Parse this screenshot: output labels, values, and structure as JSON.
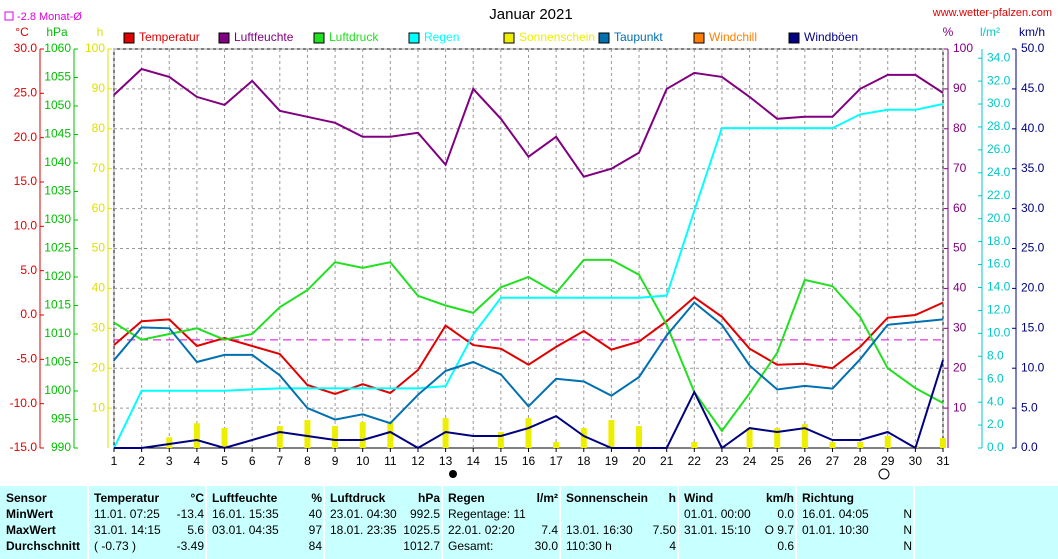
{
  "chart_data": {
    "type": "line",
    "title": "Januar 2021",
    "source": "www.wetter-pfalzen.com",
    "monthly_avg": {
      "value": -2.8,
      "label": "-2.8 Monat-Ø"
    },
    "x": [
      1,
      2,
      3,
      4,
      5,
      6,
      7,
      8,
      9,
      10,
      11,
      12,
      13,
      14,
      15,
      16,
      17,
      18,
      19,
      20,
      21,
      22,
      23,
      24,
      25,
      26,
      27,
      28,
      29,
      30,
      31
    ],
    "xlim": [
      1,
      31
    ],
    "xticks": [
      1,
      2,
      3,
      4,
      5,
      6,
      7,
      8,
      9,
      10,
      11,
      12,
      13,
      14,
      15,
      16,
      17,
      18,
      19,
      20,
      21,
      22,
      23,
      24,
      25,
      26,
      27,
      28,
      29,
      30,
      31
    ],
    "grid": true,
    "axes": {
      "temp": {
        "label": "°C",
        "color": "#e00000",
        "side": "left",
        "lim": [
          -15,
          30
        ],
        "ticks": [
          {
            "value": 30,
            "label": "30.0"
          },
          {
            "value": 25,
            "label": "25.0"
          },
          {
            "value": 20,
            "label": "20.0"
          },
          {
            "value": 15,
            "label": "15.0"
          },
          {
            "value": 10,
            "label": "10.0"
          },
          {
            "value": 5,
            "label": "5.0"
          },
          {
            "value": 0,
            "label": "0.0"
          },
          {
            "value": -5,
            "label": "-5.0"
          },
          {
            "value": -10,
            "label": "-10.0"
          },
          {
            "value": -15,
            "label": "-15.0"
          }
        ]
      },
      "press": {
        "label": "hPa",
        "color": "#00c000",
        "side": "left",
        "lim": [
          990,
          1060
        ],
        "ticks": [
          1060,
          1055,
          1050,
          1045,
          1040,
          1035,
          1030,
          1025,
          1020,
          1015,
          1010,
          1005,
          1000,
          995,
          990
        ]
      },
      "sun": {
        "label": "h",
        "color": "#e0e000",
        "side": "left",
        "lim": [
          0,
          100
        ],
        "ticks": [
          100,
          90,
          80,
          70,
          60,
          50,
          40,
          30,
          20,
          10
        ]
      },
      "hum": {
        "label": "%",
        "color": "#800080",
        "side": "right",
        "lim": [
          0,
          100
        ],
        "ticks": [
          100,
          90,
          80,
          70,
          60,
          50,
          40,
          30,
          20,
          10
        ]
      },
      "rain": {
        "label": "l/m²",
        "color": "#00c8c8",
        "side": "right",
        "lim": [
          0,
          34.8
        ],
        "ticks": [
          {
            "value": 34,
            "label": "34.0"
          },
          {
            "value": 32,
            "label": "32.0"
          },
          {
            "value": 30,
            "label": "30.0"
          },
          {
            "value": 28,
            "label": "28.0"
          },
          {
            "value": 26,
            "label": "26.0"
          },
          {
            "value": 24,
            "label": "24.0"
          },
          {
            "value": 22,
            "label": "22.0"
          },
          {
            "value": 20,
            "label": "20.0"
          },
          {
            "value": 18,
            "label": "18.0"
          },
          {
            "value": 16,
            "label": "16.0"
          },
          {
            "value": 14,
            "label": "14.0"
          },
          {
            "value": 12,
            "label": "12.0"
          },
          {
            "value": 10,
            "label": "10.0"
          },
          {
            "value": 8,
            "label": "8.0"
          },
          {
            "value": 6,
            "label": "6.0"
          },
          {
            "value": 4,
            "label": "4.0"
          },
          {
            "value": 2,
            "label": "2.0"
          },
          {
            "value": 0,
            "label": "0.0"
          }
        ]
      },
      "wind": {
        "label": "km/h",
        "color": "#000080",
        "side": "right",
        "lim": [
          0,
          50
        ],
        "ticks": [
          {
            "value": 50,
            "label": "50.0"
          },
          {
            "value": 45,
            "label": "45.0"
          },
          {
            "value": 40,
            "label": "40.0"
          },
          {
            "value": 35,
            "label": "35.0"
          },
          {
            "value": 30,
            "label": "30.0"
          },
          {
            "value": 25,
            "label": "25.0"
          },
          {
            "value": 20,
            "label": "20.0"
          },
          {
            "value": 15,
            "label": "15.0"
          },
          {
            "value": 10,
            "label": "10.0"
          },
          {
            "value": 5,
            "label": "5.0"
          },
          {
            "value": 0,
            "label": "0.0"
          }
        ]
      }
    },
    "series": [
      {
        "name": "Temperatur",
        "color": "#e00000",
        "axis": "temp",
        "values": [
          -3.4,
          -0.7,
          -0.5,
          -3.5,
          -2.6,
          -3.5,
          -4.4,
          -7.9,
          -8.9,
          -7.8,
          -8.8,
          -6.2,
          -1.2,
          -3.4,
          -3.8,
          -5.6,
          -3.6,
          -1.8,
          -3.9,
          -3.0,
          -0.7,
          2.0,
          -0.2,
          -3.8,
          -5.6,
          -5.5,
          -6.0,
          -3.6,
          -0.3,
          0,
          1.4
        ]
      },
      {
        "name": "Luftfeuchte",
        "color": "#800080",
        "axis": "hum",
        "values": [
          88.5,
          95,
          93,
          88,
          86,
          92,
          84.5,
          83,
          81.5,
          78,
          78,
          79,
          71,
          90,
          82.5,
          73,
          78,
          68,
          70,
          74,
          90,
          94,
          93,
          88,
          82.5,
          83,
          83,
          90,
          93.5,
          93.5,
          89
        ]
      },
      {
        "name": "Luftdruck",
        "color": "#20e020",
        "axis": "press",
        "values": [
          1012,
          1009,
          1010,
          1011,
          1009,
          1010,
          1014.7,
          1017.7,
          1022.6,
          1021.6,
          1022.6,
          1016.7,
          1015,
          1013.7,
          1018.2,
          1020,
          1017.2,
          1023,
          1023,
          1020.4,
          1011.6,
          999.8,
          993,
          999.6,
          1006.7,
          1019.5,
          1018.4,
          1013,
          1004,
          1000.5,
          997.9
        ]
      },
      {
        "name": "Regen",
        "color": "#00ffff",
        "axis": "rain",
        "values": [
          0,
          5.0,
          5.0,
          5.0,
          5.0,
          5.1,
          5.2,
          5.2,
          5.2,
          5.2,
          5.2,
          5.2,
          5.4,
          9.9,
          13.1,
          13.1,
          13.1,
          13.1,
          13.1,
          13.1,
          13.3,
          20.7,
          27.9,
          27.9,
          27.9,
          27.9,
          27.9,
          29.1,
          29.5,
          29.5,
          30.0
        ]
      },
      {
        "name": "Sonnenschein",
        "color": "#eeee00",
        "axis": "sun",
        "type": "bar",
        "values": [
          0,
          0,
          2.7,
          6.2,
          5,
          0,
          5.5,
          7,
          5.5,
          6.5,
          6.5,
          0,
          7.5,
          0,
          4,
          7.5,
          1.5,
          5,
          7,
          5.5,
          0,
          1.5,
          0,
          5,
          5,
          6,
          1.5,
          1.5,
          3,
          0.5,
          2.5
        ]
      },
      {
        "name": "Taupunkt",
        "color": "#0070b0",
        "axis": "temp",
        "values": [
          -5.1,
          -1.4,
          -1.5,
          -5.3,
          -4.5,
          -4.5,
          -6.8,
          -10.5,
          -11.8,
          -11.2,
          -12.2,
          -9.0,
          -6.3,
          -5.3,
          -6.7,
          -10.3,
          -7.2,
          -7.5,
          -9.1,
          -7.0,
          -2.3,
          1.4,
          -1.1,
          -5.7,
          -8.4,
          -8.0,
          -8.3,
          -5.0,
          -1.1,
          -0.8,
          -0.5
        ]
      },
      {
        "name": "Windchill",
        "color": "#ff8000",
        "axis": "temp"
      },
      {
        "name": "Windböen",
        "color": "#000080",
        "axis": "wind",
        "values": [
          0,
          0,
          0.5,
          1,
          0,
          1,
          2,
          1.5,
          1,
          1,
          2,
          0,
          2,
          1.5,
          1.5,
          2.5,
          4,
          1.5,
          0,
          0,
          0,
          7,
          0,
          2.5,
          2,
          2.5,
          1,
          1,
          2,
          0,
          11
        ]
      }
    ]
  },
  "table": {
    "header": [
      "Sensor",
      "Temperatur",
      "°C",
      "Luftfeuchte",
      "%",
      "Luftdruck",
      "hPa",
      "Regen",
      "l/m²",
      "Sonnenschein",
      "h",
      "Wind",
      "km/h",
      "Richtung",
      null
    ],
    "rows": [
      [
        "MinWert",
        "11.01. 07:25",
        "-13.4",
        "16.01. 15:35",
        "40",
        "23.01. 04:30",
        "992.5",
        "Regentage: 11",
        null,
        null,
        null,
        "01.01. 00:00",
        "0.0",
        "16.01. 04:05",
        "N"
      ],
      [
        "MaxWert",
        "31.01. 14:15",
        "5.6",
        "03.01. 04:35",
        "97",
        "18.01. 23:35",
        "1025.5",
        "22.01. 02:20",
        "7.4",
        "13.01. 16:30",
        "7.50",
        "31.01. 15:10",
        "O 9.7",
        "01.01. 10:30",
        "N"
      ],
      [
        "Durchschnitt",
        "( -0.73 )",
        "-3.49",
        null,
        "84",
        null,
        "1012.7",
        "Gesamt:",
        "30.0",
        "110:30 h",
        "4",
        null,
        "0.6",
        null,
        "N"
      ]
    ]
  }
}
